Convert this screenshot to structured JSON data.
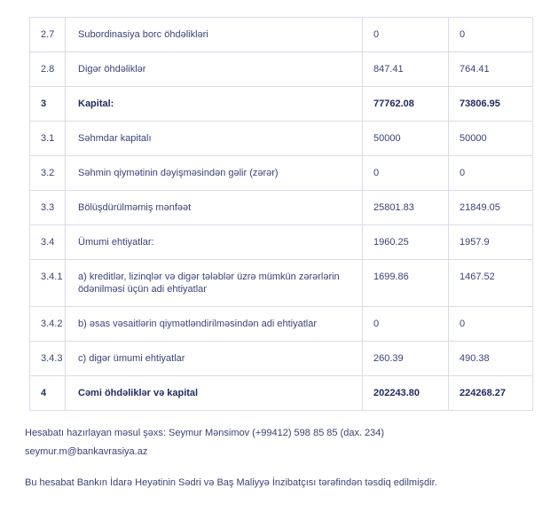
{
  "theme": {
    "text_color": "#3a4377",
    "bold_text_color": "#1f2a5e",
    "border_color": "#d9dbe8",
    "background": "#ffffff"
  },
  "table": {
    "columns": [
      "number",
      "label",
      "value_current",
      "value_previous"
    ],
    "rows": [
      {
        "num": "2.7",
        "label": "Subordinasiya borc öhdəlikləri",
        "v1": "0",
        "v2": "0",
        "bold": false
      },
      {
        "num": "2.8",
        "label": "Digər öhdəliklər",
        "v1": "847.41",
        "v2": "764.41",
        "bold": false
      },
      {
        "num": "3",
        "label": "Kapital:",
        "v1": "77762.08",
        "v2": "73806.95",
        "bold": true
      },
      {
        "num": "3.1",
        "label": "Səhmdar kapitalı",
        "v1": "50000",
        "v2": "50000",
        "bold": false
      },
      {
        "num": "3.2",
        "label": "Səhmin qiymətinin dəyişməsindən gəlir (zərər)",
        "v1": "0",
        "v2": "0",
        "bold": false
      },
      {
        "num": "3.3",
        "label": "Bölüşdürülməmiş mənfəət",
        "v1": "25801.83",
        "v2": "21849.05",
        "bold": false
      },
      {
        "num": "3.4",
        "label": "Ümumi ehtiyatlar:",
        "v1": "1960.25",
        "v2": "1957.9",
        "bold": false
      },
      {
        "num": "3.4.1",
        "label": "a) kreditlər, lizinqlər və digər tələblər üzrə mümkün zərərlərin ödənilməsi üçün adi ehtiyatlar",
        "v1": "1699.86",
        "v2": "1467.52",
        "bold": false
      },
      {
        "num": "3.4.2",
        "label": "b) əsas vəsaitlərin qiymətləndirilməsindən adi ehtiyatlar",
        "v1": "0",
        "v2": "0",
        "bold": false
      },
      {
        "num": "3.4.3",
        "label": "c) digər ümumi ehtiyatlar",
        "v1": "260.39",
        "v2": "490.38",
        "bold": false
      },
      {
        "num": "4",
        "label": "Cəmi öhdəliklər və kapital",
        "v1": "202243.80",
        "v2": "224268.27",
        "bold": true
      }
    ]
  },
  "footer": {
    "preparer_line": "Hesabatı hazırlayan məsul şəxs: Seymur Mənsimov (+99412) 598 85 85 (dax. 234)",
    "email": "seymur.m@bankavrasiya.az",
    "approval_line": "Bu hesabat Bankın İdarə Heyətinin Sədri və Baş Maliyyə İnzibatçısı tərəfindən təsdiq edilmişdir."
  }
}
